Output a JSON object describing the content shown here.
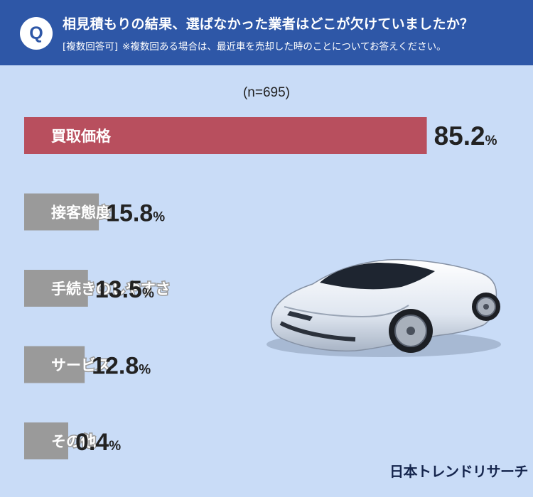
{
  "header": {
    "badge": "Q",
    "question": "相見積もりの結果、選ばなかった業者はどこが欠けていましたか？",
    "note_tag": "[複数回答可]",
    "note": "※複数回ある場合は、最近車を売却した時のことについてお答えください。"
  },
  "sample_size": "(n=695)",
  "brand": "日本トレンドリサーチ",
  "colors": {
    "header_bg": "#2e57a7",
    "page_bg": "#c9dcf7",
    "highlight_bar": "#b84f5e",
    "bar": "#9a9a9a"
  },
  "chart_data": {
    "type": "bar",
    "orientation": "horizontal",
    "unit": "%",
    "categories": [
      "買取価格",
      "接客態度",
      "手続きのしやすさ",
      "サービス",
      "その他"
    ],
    "values": [
      85.2,
      15.8,
      13.5,
      12.8,
      0.4
    ],
    "value_labels": [
      "85.2",
      "15.8",
      "13.5",
      "12.8",
      "0.4"
    ],
    "highlight_index": 0,
    "xlim": [
      0,
      100
    ]
  }
}
